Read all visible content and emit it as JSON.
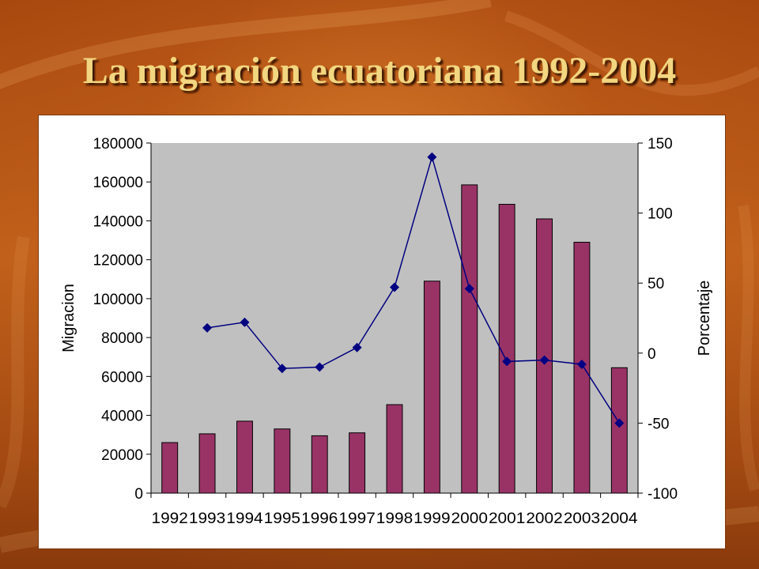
{
  "slide": {
    "title": "La migración ecuatoriana 1992-2004"
  },
  "colors": {
    "bar": "#993366",
    "line": "#000080",
    "plot_area": "#c0c0c0",
    "title": "#f2d680"
  },
  "chart_data": {
    "type": "bar",
    "categories": [
      "1992",
      "1993",
      "1994",
      "1995",
      "1996",
      "1997",
      "1998",
      "1999",
      "2000",
      "2001",
      "2002",
      "2003",
      "2004"
    ],
    "series": [
      {
        "type": "bar",
        "axis": "left",
        "values": [
          26000,
          30500,
          37000,
          33000,
          29500,
          31000,
          45500,
          109000,
          158500,
          148500,
          141000,
          129000,
          64500
        ]
      },
      {
        "type": "line",
        "axis": "right",
        "values": [
          null,
          18,
          22,
          -11,
          -10,
          4,
          47,
          140,
          46,
          -6,
          -5,
          -8,
          -50
        ]
      }
    ],
    "ylabel": "Migracion",
    "y2label": "Porcentaje",
    "ylim": [
      0,
      180000
    ],
    "y2lim": [
      -100,
      150
    ],
    "yticks": [
      "0",
      "20000",
      "40000",
      "60000",
      "80000",
      "100000",
      "120000",
      "140000",
      "160000",
      "180000"
    ],
    "y2ticks": [
      "-100",
      "-50",
      "0",
      "50",
      "100",
      "150"
    ],
    "grid": false,
    "legend": "none"
  }
}
